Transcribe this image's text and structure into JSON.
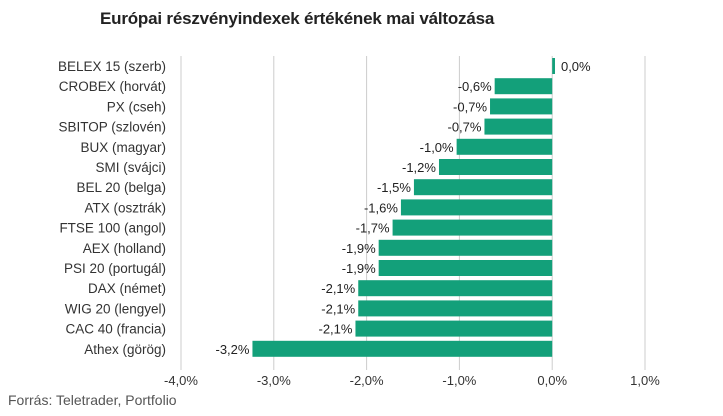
{
  "colors": {
    "bar": "#13a07a",
    "grid": "#cccccc",
    "text": "#333333"
  },
  "chart_data": {
    "type": "bar",
    "orientation": "horizontal",
    "title": "Európai részvényindexek értékének mai változása",
    "source": "Forrás: Teletrader, Portfolio",
    "categories": [
      "BELEX 15 (szerb)",
      "CROBEX (horvát)",
      "PX (cseh)",
      "SBITOP (szlovén)",
      "BUX (magyar)",
      "SMI (svájci)",
      "BEL 20 (belga)",
      "ATX (osztrák)",
      "FTSE 100 (angol)",
      "AEX (holland)",
      "PSI 20 (portugál)",
      "DAX (német)",
      "WIG 20 (lengyel)",
      "CAC 40 (francia)",
      "Athex (görög)"
    ],
    "values": [
      0.03,
      -0.62,
      -0.67,
      -0.73,
      -1.03,
      -1.22,
      -1.49,
      -1.63,
      -1.72,
      -1.87,
      -1.87,
      -2.09,
      -2.09,
      -2.12,
      -3.23
    ],
    "value_labels": [
      "0,0%",
      "-0,6%",
      "-0,7%",
      "-0,7%",
      "-1,0%",
      "-1,2%",
      "-1,5%",
      "-1,6%",
      "-1,7%",
      "-1,9%",
      "-1,9%",
      "-2,1%",
      "-2,1%",
      "-2,1%",
      "-3,2%"
    ],
    "xlim": [
      -4.0,
      1.0
    ],
    "x_ticks": [
      -4.0,
      -3.0,
      -2.0,
      -1.0,
      0.0,
      1.0
    ],
    "x_tick_labels": [
      "-4,0%",
      "-3,0%",
      "-2,0%",
      "-1,0%",
      "0,0%",
      "1,0%"
    ],
    "grid": true,
    "legend": "none"
  }
}
